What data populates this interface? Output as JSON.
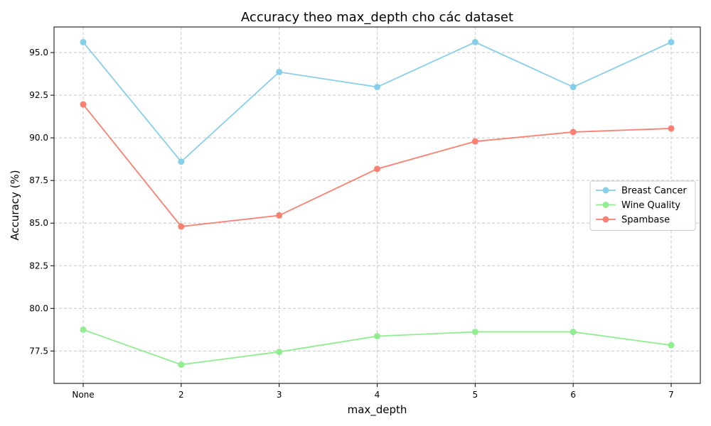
{
  "chart_data": {
    "type": "line",
    "title": "Accuracy theo max_depth cho các dataset",
    "xlabel": "max_depth",
    "ylabel": "Accuracy (%)",
    "categories": [
      "None",
      "2",
      "3",
      "4",
      "5",
      "6",
      "7"
    ],
    "ylim": [
      75.6,
      96.5
    ],
    "yticks": [
      "77.5",
      "80.0",
      "82.5",
      "85.0",
      "87.5",
      "90.0",
      "92.5",
      "95.0"
    ],
    "grid": true,
    "legend_position": "center-right",
    "series": [
      {
        "name": "Breast Cancer",
        "color": "#87ceeb",
        "values": [
          95.61,
          88.6,
          93.86,
          92.98,
          95.61,
          92.98,
          95.61
        ]
      },
      {
        "name": "Wine Quality",
        "color": "#90ee90",
        "values": [
          78.75,
          76.7,
          77.45,
          78.37,
          78.62,
          78.62,
          77.84
        ]
      },
      {
        "name": "Spambase",
        "color": "#fa8072",
        "values": [
          91.96,
          84.8,
          85.45,
          88.18,
          89.79,
          90.34,
          90.55
        ]
      }
    ]
  }
}
